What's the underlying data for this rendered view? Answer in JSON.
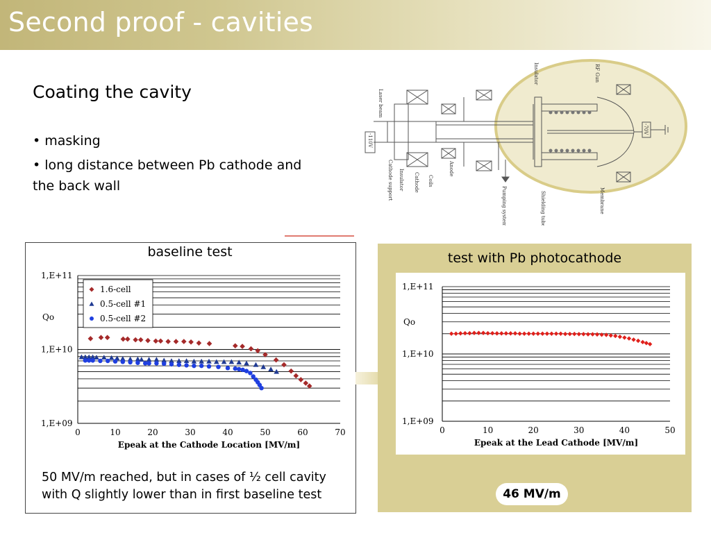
{
  "title": "Second proof - cavities",
  "subtitle": "Coating the cavity",
  "bullets": [
    "• masking",
    "• long distance between Pb cathode and the back wall"
  ],
  "diagram_labels": [
    "Laser beam",
    "-110V",
    "Cathode support",
    "Insulator",
    "Cathode",
    "Coils",
    "Anode",
    "Pumping system",
    "Shielding tube",
    "Membrane",
    "RF Gun",
    "Insulator",
    "-70V"
  ],
  "left_panel": {
    "heading": "baseline test",
    "caption": "50 MV/m reached, but in cases of ½ cell cavity with Q slightly lower than in first baseline test"
  },
  "right_panel": {
    "heading": "test with Pb photocathode",
    "badge": "46 MV/m"
  },
  "colors": {
    "title_bar": "#c9bd82",
    "right_panel": "#d9cf95",
    "series_red": "#a52a2a",
    "series_navy": "#1f3a93",
    "series_blue": "#1f3fe0",
    "series_pb": "#e0201b"
  },
  "chart_data": [
    {
      "type": "scatter",
      "title": "",
      "xlabel": "Epeak at the Cathode Location [MV/m]",
      "ylabel": "Qo",
      "xlim": [
        0,
        70
      ],
      "ylim": [
        1000000000.0,
        100000000000.0
      ],
      "yscale": "log",
      "xticks": [
        0,
        10,
        20,
        30,
        40,
        50,
        60,
        70
      ],
      "yticks": [
        "1,E+09",
        "1,E+10",
        "1,E+11"
      ],
      "grid": "horizontal",
      "legend": "top-left",
      "series": [
        {
          "name": "1.6-cell",
          "marker": "diamond",
          "color": "#a52a2a",
          "x": [
            3.4,
            6.2,
            7.9,
            12.1,
            13.3,
            15.4,
            16.8,
            18.7,
            20.8,
            22.1,
            24.1,
            26.2,
            28.3,
            30.2,
            32.3,
            35.1,
            42.0,
            43.9,
            46.2,
            48.0,
            50.0,
            52.9,
            55.0,
            56.9,
            58.2,
            59.5,
            60.8,
            61.8
          ],
          "y": [
            14000000000.0,
            14500000000.0,
            14500000000.0,
            13800000000.0,
            13800000000.0,
            13500000000.0,
            13500000000.0,
            13200000000.0,
            13000000000.0,
            13000000000.0,
            12800000000.0,
            12800000000.0,
            12800000000.0,
            12600000000.0,
            12200000000.0,
            12000000000.0,
            11200000000.0,
            11000000000.0,
            10200000000.0,
            9600000000.0,
            8500000000.0,
            7200000000.0,
            6200000000.0,
            5100000000.0,
            4400000000.0,
            3900000000.0,
            3500000000.0,
            3200000000.0
          ]
        },
        {
          "name": "0.5-cell #1",
          "marker": "triangle",
          "color": "#1f3a93",
          "x": [
            1.0,
            2.0,
            3.0,
            4.0,
            5.0,
            7.0,
            9.0,
            10.5,
            12.0,
            14.0,
            16.0,
            17.0,
            19.0,
            21.0,
            23.0,
            25.0,
            27.0,
            29.0,
            31.0,
            33.0,
            35.0,
            37.0,
            39.0,
            41.0,
            43.0,
            45.0,
            47.5,
            49.5,
            51.5,
            53.0
          ],
          "y": [
            7900000000.0,
            7900000000.0,
            7900000000.0,
            7900000000.0,
            7800000000.0,
            7800000000.0,
            7700000000.0,
            7600000000.0,
            7500000000.0,
            7400000000.0,
            7400000000.0,
            7300000000.0,
            7300000000.0,
            7300000000.0,
            7100000000.0,
            7000000000.0,
            7000000000.0,
            7000000000.0,
            6900000000.0,
            6900000000.0,
            6900000000.0,
            6800000000.0,
            6800000000.0,
            6800000000.0,
            6700000000.0,
            6500000000.0,
            6200000000.0,
            5800000000.0,
            5400000000.0,
            5000000000.0
          ]
        },
        {
          "name": "0.5-cell #2",
          "marker": "circle",
          "color": "#1f3fe0",
          "x": [
            2.0,
            3.0,
            4.0,
            6.0,
            8.0,
            10.0,
            12.0,
            14.0,
            16.0,
            18.0,
            19.0,
            21.0,
            23.0,
            25.0,
            27.0,
            29.0,
            31.0,
            33.0,
            35.0,
            37.5,
            40.0,
            42.0,
            43.0,
            44.0,
            45.0,
            46.0,
            46.8,
            47.5,
            48.0,
            48.5,
            49.0
          ],
          "y": [
            7100000000.0,
            7100000000.0,
            7100000000.0,
            7000000000.0,
            7000000000.0,
            6900000000.0,
            6800000000.0,
            6700000000.0,
            6600000000.0,
            6500000000.0,
            6500000000.0,
            6500000000.0,
            6400000000.0,
            6300000000.0,
            6200000000.0,
            6100000000.0,
            6000000000.0,
            6000000000.0,
            5900000000.0,
            5800000000.0,
            5600000000.0,
            5500000000.0,
            5400000000.0,
            5300000000.0,
            5100000000.0,
            4800000000.0,
            4300000000.0,
            3900000000.0,
            3600000000.0,
            3300000000.0,
            3000000000.0
          ]
        }
      ]
    },
    {
      "type": "scatter",
      "title": "",
      "xlabel": "Epeak at the Lead Cathode [MV/m]",
      "ylabel": "Qo",
      "xlim": [
        0,
        50
      ],
      "ylim": [
        1000000000.0,
        100000000000.0
      ],
      "yscale": "log",
      "xticks": [
        0,
        10,
        20,
        30,
        40,
        50
      ],
      "yticks": [
        "1,E+09",
        "1,E+10",
        "1,E+11"
      ],
      "grid": "horizontal",
      "series": [
        {
          "marker": "diamond",
          "color": "#e0201b",
          "x": [
            2.0,
            3.0,
            4.0,
            5.0,
            6.0,
            7.0,
            8.0,
            9.0,
            10.0,
            11.0,
            12.0,
            13.0,
            14.0,
            15.0,
            16.0,
            17.0,
            18.0,
            19.0,
            20.0,
            21.0,
            22.0,
            23.0,
            24.0,
            25.0,
            26.0,
            27.0,
            28.0,
            29.0,
            30.0,
            31.0,
            32.0,
            33.0,
            34.0,
            35.0,
            36.0,
            37.0,
            38.0,
            39.0,
            40.0,
            41.0,
            42.0,
            43.0,
            44.0,
            44.8,
            45.6
          ],
          "y": [
            20000000000.0,
            20000000000.0,
            20200000000.0,
            20300000000.0,
            20300000000.0,
            20500000000.0,
            20500000000.0,
            20500000000.0,
            20300000000.0,
            20300000000.0,
            20200000000.0,
            20200000000.0,
            20200000000.0,
            20200000000.0,
            20200000000.0,
            20000000000.0,
            20000000000.0,
            20000000000.0,
            20000000000.0,
            20000000000.0,
            20000000000.0,
            20000000000.0,
            20000000000.0,
            20000000000.0,
            20000000000.0,
            19800000000.0,
            19800000000.0,
            19800000000.0,
            19700000000.0,
            19700000000.0,
            19600000000.0,
            19600000000.0,
            19500000000.0,
            19300000000.0,
            19200000000.0,
            18800000000.0,
            18500000000.0,
            18000000000.0,
            17500000000.0,
            17000000000.0,
            16300000000.0,
            15700000000.0,
            15000000000.0,
            14500000000.0,
            14000000000.0
          ]
        }
      ]
    }
  ]
}
